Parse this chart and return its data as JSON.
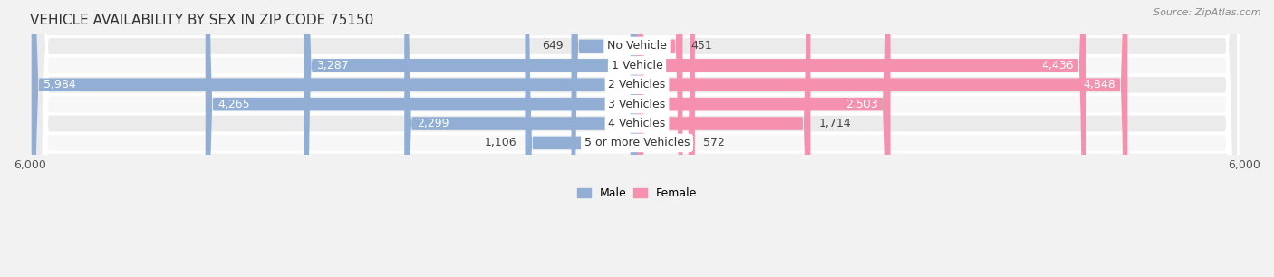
{
  "title": "VEHICLE AVAILABILITY BY SEX IN ZIP CODE 75150",
  "source": "Source: ZipAtlas.com",
  "categories": [
    "No Vehicle",
    "1 Vehicle",
    "2 Vehicles",
    "3 Vehicles",
    "4 Vehicles",
    "5 or more Vehicles"
  ],
  "male_values": [
    649,
    3287,
    5984,
    4265,
    2299,
    1106
  ],
  "female_values": [
    451,
    4436,
    4848,
    2503,
    1714,
    572
  ],
  "male_color": "#92aed4",
  "female_color": "#f590ae",
  "male_label": "Male",
  "female_label": "Female",
  "x_max": 6000,
  "x_min": -6000,
  "row_color_odd": "#ebebeb",
  "row_color_even": "#f7f7f7",
  "background_color": "#f2f2f2",
  "title_fontsize": 11,
  "source_fontsize": 8,
  "label_fontsize": 9,
  "category_fontsize": 9
}
